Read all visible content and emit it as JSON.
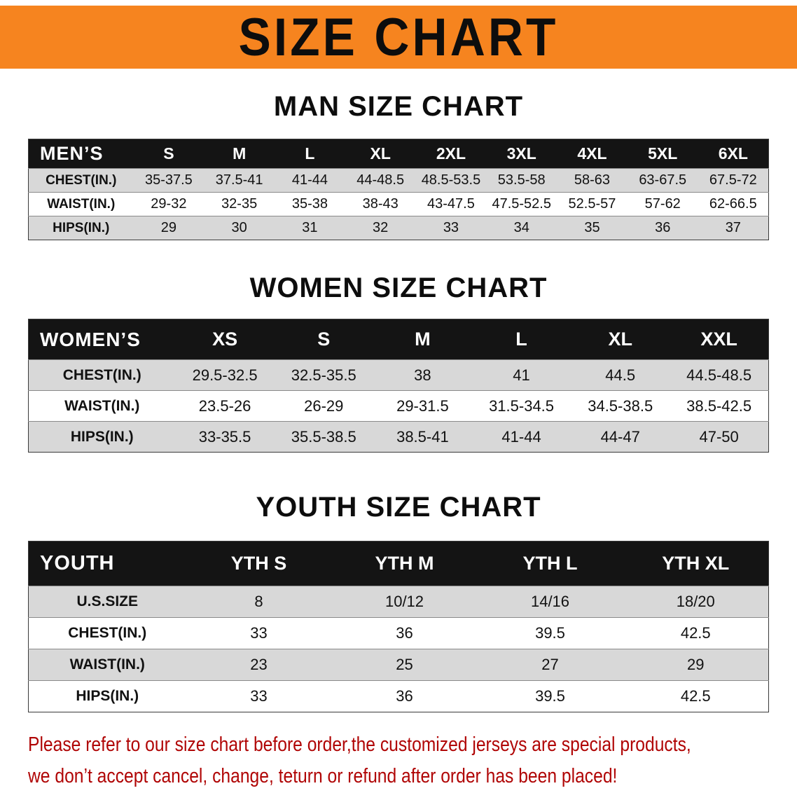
{
  "banner": {
    "title": "SIZE CHART",
    "background": "#f6841f"
  },
  "table_style": {
    "header_bg": "#141414",
    "stripe_gray": "#d8d8d8"
  },
  "sections": {
    "men": {
      "heading": "MAN SIZE CHART",
      "table": {
        "header": [
          "MEN’S",
          "S",
          "M",
          "L",
          "XL",
          "2XL",
          "3XL",
          "4XL",
          "5XL",
          "6XL"
        ],
        "rows": [
          [
            "CHEST(IN.)",
            "35-37.5",
            "37.5-41",
            "41-44",
            "44-48.5",
            "48.5-53.5",
            "53.5-58",
            "58-63",
            "63-67.5",
            "67.5-72"
          ],
          [
            "WAIST(IN.)",
            "29-32",
            "32-35",
            "35-38",
            "38-43",
            "43-47.5",
            "47.5-52.5",
            "52.5-57",
            "57-62",
            "62-66.5"
          ],
          [
            "HIPS(IN.)",
            "29",
            "30",
            "31",
            "32",
            "33",
            "34",
            "35",
            "36",
            "37"
          ]
        ]
      }
    },
    "women": {
      "heading": "WOMEN SIZE CHART",
      "table": {
        "header": [
          "WOMEN’S",
          "XS",
          "S",
          "M",
          "L",
          "XL",
          "XXL"
        ],
        "rows": [
          [
            "CHEST(IN.)",
            "29.5-32.5",
            "32.5-35.5",
            "38",
            "41",
            "44.5",
            "44.5-48.5"
          ],
          [
            "WAIST(IN.)",
            "23.5-26",
            "26-29",
            "29-31.5",
            "31.5-34.5",
            "34.5-38.5",
            "38.5-42.5"
          ],
          [
            "HIPS(IN.)",
            "33-35.5",
            "35.5-38.5",
            "38.5-41",
            "41-44",
            "44-47",
            "47-50"
          ]
        ]
      }
    },
    "youth": {
      "heading": "YOUTH SIZE CHART",
      "table": {
        "header": [
          "YOUTH",
          "YTH S",
          "YTH M",
          "YTH L",
          "YTH XL"
        ],
        "rows": [
          [
            "U.S.SIZE",
            "8",
            "10/12",
            "14/16",
            "18/20"
          ],
          [
            "CHEST(IN.)",
            "33",
            "36",
            "39.5",
            "42.5"
          ],
          [
            "WAIST(IN.)",
            "23",
            "25",
            "27",
            "29"
          ],
          [
            "HIPS(IN.)",
            "33",
            "36",
            "39.5",
            "42.5"
          ]
        ]
      }
    }
  },
  "disclaimer": {
    "color": "#b00505",
    "line1": "Please refer to our size chart before order,the customized jerseys are special products,",
    "line2": "we don’t accept cancel, change, teturn or refund after order has been placed!"
  }
}
